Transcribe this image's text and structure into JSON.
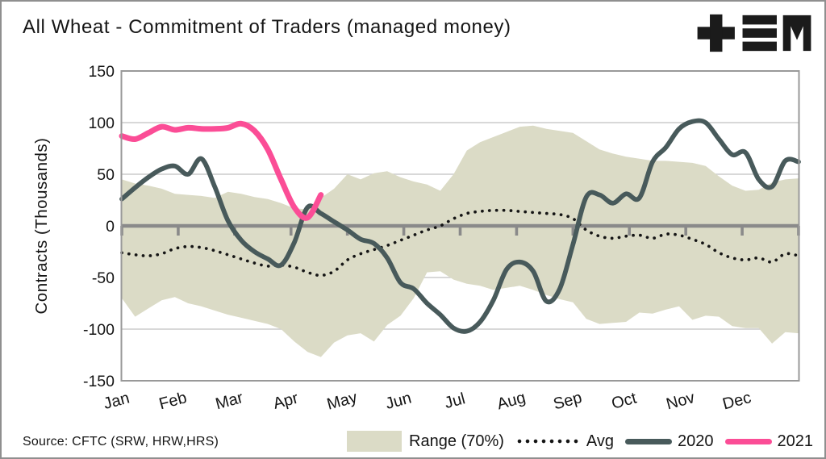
{
  "header": {
    "title": "All Wheat - Commitment of Traders (managed money)",
    "logo_name": "tem-logo"
  },
  "footer": {
    "source": "Source: CFTC (SRW, HRW,HRS)"
  },
  "legend": {
    "items": [
      {
        "label": "Range (70%)",
        "swatch": "band"
      },
      {
        "label": "Avg",
        "swatch": "dots"
      },
      {
        "label": "2020",
        "swatch": "line-2020"
      },
      {
        "label": "2021",
        "swatch": "line-2021"
      }
    ]
  },
  "chart_data": {
    "type": "line",
    "title": "All Wheat - Commitment of Traders (managed money)",
    "xlabel": "",
    "ylabel": "Contracts (Thousands)",
    "ylim": [
      -150,
      150
    ],
    "yticks": [
      150,
      100,
      50,
      0,
      -50,
      -100,
      -150
    ],
    "grid": true,
    "legend_position": "bottom-right",
    "months": [
      "Jan",
      "Feb",
      "Mar",
      "Apr",
      "May",
      "Jun",
      "Jul",
      "Aug",
      "Sep",
      "Oct",
      "Nov",
      "Dec"
    ],
    "x_unit": "week",
    "x_weeks": 52,
    "series": [
      {
        "name": "Range (70%)",
        "type": "band",
        "color": "#dbdbc6",
        "upper": [
          45,
          41,
          39,
          36,
          31,
          30,
          29,
          27,
          33,
          31,
          28,
          26,
          22,
          17,
          16,
          27,
          36,
          50,
          45,
          51,
          53,
          47,
          43,
          40,
          34,
          50,
          73,
          81,
          86,
          91,
          96,
          97,
          94,
          92,
          90,
          82,
          74,
          70,
          67,
          65,
          63,
          63,
          62,
          61,
          58,
          48,
          39,
          34,
          35,
          42,
          45,
          46
        ],
        "lower": [
          -70,
          -88,
          -80,
          -72,
          -69,
          -75,
          -78,
          -82,
          -86,
          -89,
          -92,
          -95,
          -100,
          -112,
          -122,
          -127,
          -113,
          -106,
          -104,
          -112,
          -96,
          -87,
          -70,
          -45,
          -44,
          -52,
          -56,
          -58,
          -62,
          -60,
          -58,
          -62,
          -67,
          -71,
          -74,
          -90,
          -95,
          -94,
          -93,
          -84,
          -85,
          -81,
          -78,
          -91,
          -87,
          -88,
          -97,
          -99,
          -99,
          -114,
          -103,
          -104
        ]
      },
      {
        "name": "Avg",
        "type": "dotted",
        "color": "#151515",
        "values": [
          -26,
          -28,
          -29,
          -27,
          -22,
          -20,
          -21,
          -24,
          -28,
          -32,
          -36,
          -39,
          -38,
          -40,
          -45,
          -48,
          -44,
          -33,
          -27,
          -23,
          -19,
          -14,
          -9,
          -4,
          0,
          7,
          12,
          14,
          15,
          15,
          14,
          13,
          12,
          11,
          7,
          -4,
          -10,
          -12,
          -10,
          -9,
          -12,
          -8,
          -9,
          -13,
          -18,
          -26,
          -31,
          -33,
          -31,
          -35,
          -27,
          -29
        ]
      },
      {
        "name": "2020",
        "type": "line",
        "color": "#485a5b",
        "values": [
          26,
          37,
          47,
          55,
          58,
          50,
          65,
          38,
          5,
          -14,
          -25,
          -32,
          -38,
          -16,
          18,
          12,
          4,
          -4,
          -13,
          -17,
          -31,
          -55,
          -61,
          -75,
          -86,
          -99,
          -102,
          -93,
          -72,
          -42,
          -35,
          -44,
          -73,
          -61,
          -18,
          28,
          30,
          22,
          31,
          27,
          62,
          76,
          94,
          101,
          100,
          84,
          69,
          71,
          45,
          38,
          63,
          62
        ]
      },
      {
        "name": "2021",
        "type": "line",
        "color": "#fb4d96",
        "values": [
          87,
          84,
          90,
          96,
          93,
          95,
          94,
          94,
          95,
          99,
          92,
          74,
          45,
          18,
          8,
          30
        ]
      }
    ],
    "layout": {
      "background": "#ffffff",
      "grid_color": "#cccccc",
      "zero_line_color": "#8a8a8a",
      "frame_color": "#999999",
      "text_color": "#151515"
    }
  }
}
